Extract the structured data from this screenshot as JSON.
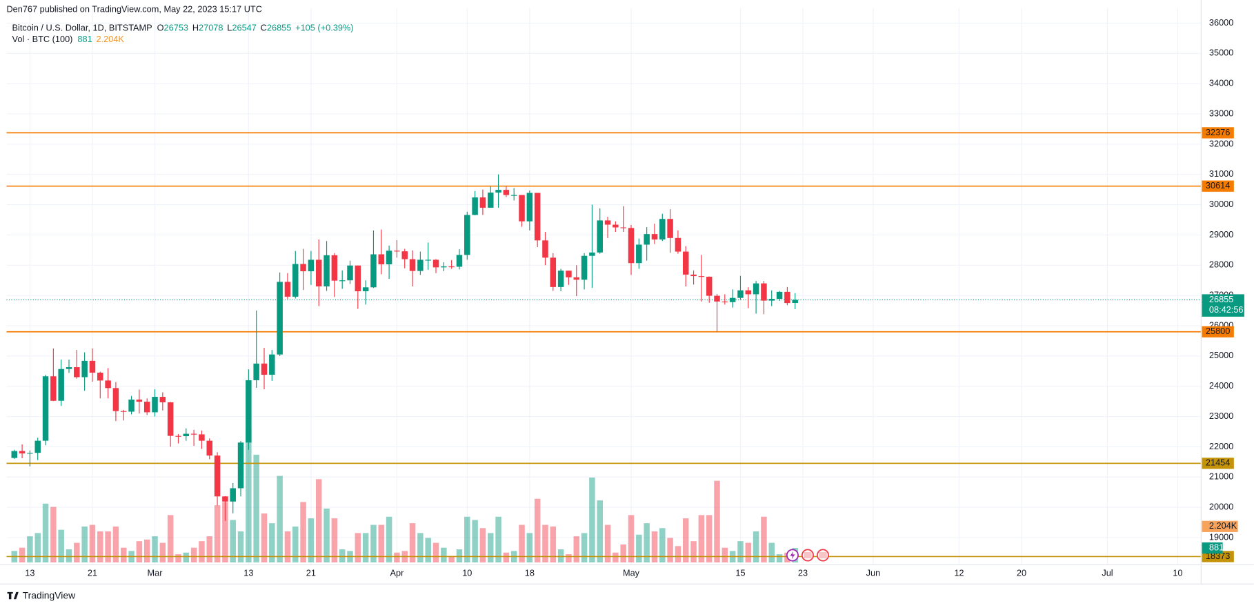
{
  "header": {
    "publisher": "Den767 published on TradingView.com, May 22, 2023 15:17 UTC",
    "logo": "TradingView"
  },
  "chart_data": {
    "type": "candlestick",
    "title": "Bitcoin / U.S. Dollar, 1D, BITSTAMP",
    "ohlc_labels": [
      "O",
      "H",
      "L",
      "C"
    ],
    "change": "+105 (+0.39%)",
    "volume_title": "Vol · BTC (100)",
    "volume_ma": {
      "value": 2204,
      "label": "2.204K"
    },
    "countdown": "08:42:56",
    "up_color": "#089981",
    "down_color": "#f23645",
    "grid": true,
    "x": [
      "2023-02-11",
      "2023-02-12",
      "2023-02-13",
      "2023-02-14",
      "2023-02-15",
      "2023-02-16",
      "2023-02-17",
      "2023-02-18",
      "2023-02-19",
      "2023-02-20",
      "2023-02-21",
      "2023-02-22",
      "2023-02-23",
      "2023-02-24",
      "2023-02-25",
      "2023-02-26",
      "2023-02-27",
      "2023-02-28",
      "2023-03-01",
      "2023-03-02",
      "2023-03-03",
      "2023-03-04",
      "2023-03-05",
      "2023-03-06",
      "2023-03-07",
      "2023-03-08",
      "2023-03-09",
      "2023-03-10",
      "2023-03-11",
      "2023-03-12",
      "2023-03-13",
      "2023-03-14",
      "2023-03-15",
      "2023-03-16",
      "2023-03-17",
      "2023-03-18",
      "2023-03-19",
      "2023-03-20",
      "2023-03-21",
      "2023-03-22",
      "2023-03-23",
      "2023-03-24",
      "2023-03-25",
      "2023-03-26",
      "2023-03-27",
      "2023-03-28",
      "2023-03-29",
      "2023-03-30",
      "2023-03-31",
      "2023-04-01",
      "2023-04-02",
      "2023-04-03",
      "2023-04-04",
      "2023-04-05",
      "2023-04-06",
      "2023-04-07",
      "2023-04-08",
      "2023-04-09",
      "2023-04-10",
      "2023-04-11",
      "2023-04-12",
      "2023-04-13",
      "2023-04-14",
      "2023-04-15",
      "2023-04-16",
      "2023-04-17",
      "2023-04-18",
      "2023-04-19",
      "2023-04-20",
      "2023-04-21",
      "2023-04-22",
      "2023-04-23",
      "2023-04-24",
      "2023-04-25",
      "2023-04-26",
      "2023-04-27",
      "2023-04-28",
      "2023-04-29",
      "2023-04-30",
      "2023-05-01",
      "2023-05-02",
      "2023-05-03",
      "2023-05-04",
      "2023-05-05",
      "2023-05-06",
      "2023-05-07",
      "2023-05-08",
      "2023-05-09",
      "2023-05-10",
      "2023-05-11",
      "2023-05-12",
      "2023-05-13",
      "2023-05-14",
      "2023-05-15",
      "2023-05-16",
      "2023-05-17",
      "2023-05-18",
      "2023-05-19",
      "2023-05-20",
      "2023-05-21",
      "2023-05-22"
    ],
    "ohlc": [
      [
        21630,
        21900,
        21600,
        21860
      ],
      [
        21860,
        22080,
        21620,
        21780
      ],
      [
        21780,
        21880,
        21350,
        21800
      ],
      [
        21800,
        22300,
        21560,
        22200
      ],
      [
        22200,
        24380,
        22050,
        24330
      ],
      [
        24330,
        25250,
        23510,
        23520
      ],
      [
        23520,
        24880,
        23350,
        24570
      ],
      [
        24570,
        24880,
        24440,
        24630
      ],
      [
        24630,
        25200,
        24250,
        24300
      ],
      [
        24300,
        25120,
        23850,
        24840
      ],
      [
        24840,
        25250,
        24150,
        24450
      ],
      [
        24450,
        24480,
        23600,
        24190
      ],
      [
        24190,
        24600,
        23600,
        23940
      ],
      [
        23940,
        24140,
        22850,
        23180
      ],
      [
        23180,
        23220,
        22870,
        23160
      ],
      [
        23160,
        23680,
        23070,
        23560
      ],
      [
        23560,
        23890,
        23100,
        23490
      ],
      [
        23490,
        23600,
        23050,
        23140
      ],
      [
        23140,
        23900,
        23000,
        23650
      ],
      [
        23650,
        23800,
        23200,
        23470
      ],
      [
        23470,
        23480,
        22000,
        22360
      ],
      [
        22360,
        22420,
        22110,
        22350
      ],
      [
        22350,
        22610,
        22200,
        22430
      ],
      [
        22430,
        22560,
        22030,
        22410
      ],
      [
        22410,
        22540,
        21930,
        22200
      ],
      [
        22200,
        22280,
        21590,
        21710
      ],
      [
        21710,
        21820,
        20060,
        20360
      ],
      [
        20360,
        20370,
        19550,
        20190
      ],
      [
        20190,
        20800,
        19800,
        20630
      ],
      [
        20630,
        22190,
        20360,
        22140
      ],
      [
        22140,
        24560,
        21900,
        24200
      ],
      [
        24200,
        26500,
        23950,
        24750
      ],
      [
        24750,
        25270,
        23900,
        24380
      ],
      [
        24380,
        25200,
        24180,
        25050
      ],
      [
        25050,
        27760,
        25000,
        27450
      ],
      [
        27450,
        27740,
        26880,
        26960
      ],
      [
        26960,
        28470,
        26900,
        28040
      ],
      [
        28040,
        28540,
        27180,
        27800
      ],
      [
        27800,
        28470,
        27350,
        28180
      ],
      [
        28180,
        28850,
        26650,
        27300
      ],
      [
        27300,
        28800,
        27150,
        28330
      ],
      [
        28330,
        28400,
        26950,
        27490
      ],
      [
        27490,
        27830,
        27220,
        27500
      ],
      [
        27500,
        28150,
        27380,
        27990
      ],
      [
        27990,
        27990,
        26560,
        27140
      ],
      [
        27140,
        27500,
        26700,
        27270
      ],
      [
        27270,
        29150,
        27250,
        28360
      ],
      [
        28360,
        29180,
        27700,
        28030
      ],
      [
        28030,
        28650,
        27550,
        28480
      ],
      [
        28480,
        28830,
        28250,
        28460
      ],
      [
        28460,
        28540,
        27900,
        28200
      ],
      [
        28200,
        28490,
        27300,
        27810
      ],
      [
        27810,
        28450,
        27680,
        28180
      ],
      [
        28180,
        28750,
        27850,
        28180
      ],
      [
        28180,
        28200,
        27740,
        27930
      ],
      [
        27930,
        28100,
        27800,
        27960
      ],
      [
        27960,
        28170,
        27880,
        27950
      ],
      [
        27950,
        28530,
        27860,
        28340
      ],
      [
        28340,
        29770,
        28180,
        29660
      ],
      [
        29660,
        30450,
        29650,
        30240
      ],
      [
        30240,
        30500,
        29660,
        29900
      ],
      [
        29900,
        30600,
        29900,
        30400
      ],
      [
        30400,
        31000,
        29900,
        30490
      ],
      [
        30490,
        30600,
        30250,
        30320
      ],
      [
        30320,
        30550,
        30140,
        30320
      ],
      [
        30320,
        30320,
        29270,
        29450
      ],
      [
        29450,
        30470,
        29150,
        30390
      ],
      [
        30390,
        30390,
        28600,
        28820
      ],
      [
        28820,
        29100,
        28000,
        28250
      ],
      [
        28250,
        28400,
        27150,
        27280
      ],
      [
        27280,
        27880,
        27140,
        27820
      ],
      [
        27820,
        27820,
        27350,
        27600
      ],
      [
        27600,
        28000,
        26980,
        27520
      ],
      [
        27520,
        28400,
        27200,
        28310
      ],
      [
        28310,
        30000,
        27250,
        28420
      ],
      [
        28420,
        29880,
        28380,
        29480
      ],
      [
        29480,
        29600,
        28900,
        29340
      ],
      [
        29340,
        29450,
        29100,
        29250
      ],
      [
        29250,
        29950,
        29100,
        29230
      ],
      [
        29230,
        29330,
        27680,
        28070
      ],
      [
        28070,
        28880,
        27880,
        28680
      ],
      [
        28680,
        29260,
        28150,
        29030
      ],
      [
        29030,
        29370,
        28700,
        28850
      ],
      [
        28850,
        29700,
        28800,
        29530
      ],
      [
        29530,
        29850,
        28410,
        28900
      ],
      [
        28900,
        29150,
        28380,
        28450
      ],
      [
        28450,
        28630,
        27300,
        27690
      ],
      [
        27690,
        27830,
        27360,
        27640
      ],
      [
        27640,
        28340,
        26800,
        27620
      ],
      [
        27620,
        27630,
        26760,
        26990
      ],
      [
        26990,
        27050,
        25800,
        26800
      ],
      [
        26800,
        27040,
        26700,
        26780
      ],
      [
        26780,
        27200,
        26600,
        26920
      ],
      [
        26920,
        27650,
        26860,
        27170
      ],
      [
        27170,
        27270,
        26580,
        27040
      ],
      [
        27040,
        27480,
        26400,
        27400
      ],
      [
        27400,
        27480,
        26380,
        26830
      ],
      [
        26830,
        27170,
        26650,
        26890
      ],
      [
        26890,
        27150,
        26820,
        27120
      ],
      [
        27120,
        27280,
        26680,
        26750
      ],
      [
        26753,
        27078,
        26547,
        26855
      ]
    ],
    "volume": [
      700,
      900,
      1600,
      1800,
      3600,
      3400,
      2000,
      800,
      1200,
      2200,
      2300,
      1900,
      1900,
      2200,
      900,
      700,
      1300,
      1400,
      1600,
      1200,
      2900,
      500,
      600,
      900,
      1300,
      1600,
      3500,
      3700,
      2600,
      1900,
      8200,
      6600,
      3000,
      2400,
      5300,
      1900,
      2200,
      3700,
      2700,
      5100,
      3300,
      2700,
      800,
      700,
      1800,
      1800,
      2300,
      2300,
      2800,
      600,
      700,
      2400,
      1800,
      1500,
      1200,
      900,
      400,
      800,
      2800,
      2600,
      2100,
      1800,
      2800,
      600,
      700,
      2300,
      1800,
      3900,
      2300,
      2200,
      800,
      500,
      1600,
      1800,
      5200,
      3800,
      2300,
      600,
      1100,
      2900,
      1700,
      2400,
      1900,
      2100,
      1500,
      1000,
      2700,
      1300,
      2900,
      2900,
      5000,
      900,
      700,
      1300,
      1200,
      1900,
      2800,
      1200,
      500,
      600,
      881
    ],
    "levels": [
      {
        "value": 32376,
        "color": "#f57c00"
      },
      {
        "value": 30614,
        "color": "#f57c00"
      },
      {
        "value": 25800,
        "color": "#f57c00"
      },
      {
        "value": 21454,
        "color": "#c59308"
      },
      {
        "value": 18373,
        "color": "#c59308"
      }
    ],
    "ylim": [
      18100,
      36500
    ],
    "yticks": [
      19000,
      20000,
      21000,
      22000,
      23000,
      24000,
      25000,
      26000,
      27000,
      28000,
      29000,
      30000,
      31000,
      32000,
      33000,
      34000,
      35000,
      36000
    ],
    "xlim": [
      "2023-02-10",
      "2023-07-13"
    ],
    "xticks": [
      {
        "value": "2023-02-13",
        "label": "13"
      },
      {
        "value": "2023-02-21",
        "label": "21"
      },
      {
        "value": "2023-03-01",
        "label": "Mar"
      },
      {
        "value": "2023-03-13",
        "label": "13"
      },
      {
        "value": "2023-03-21",
        "label": "21"
      },
      {
        "value": "2023-04-01",
        "label": "Apr"
      },
      {
        "value": "2023-04-10",
        "label": "10"
      },
      {
        "value": "2023-04-18",
        "label": "18"
      },
      {
        "value": "2023-05-01",
        "label": "May"
      },
      {
        "value": "2023-05-15",
        "label": "15"
      },
      {
        "value": "2023-05-23",
        "label": "23"
      },
      {
        "value": "2023-06-01",
        "label": "Jun"
      },
      {
        "value": "2023-06-12",
        "label": "12"
      },
      {
        "value": "2023-06-20",
        "label": "20"
      },
      {
        "value": "2023-07-01",
        "label": "Jul"
      },
      {
        "value": "2023-07-10",
        "label": "10"
      }
    ]
  }
}
